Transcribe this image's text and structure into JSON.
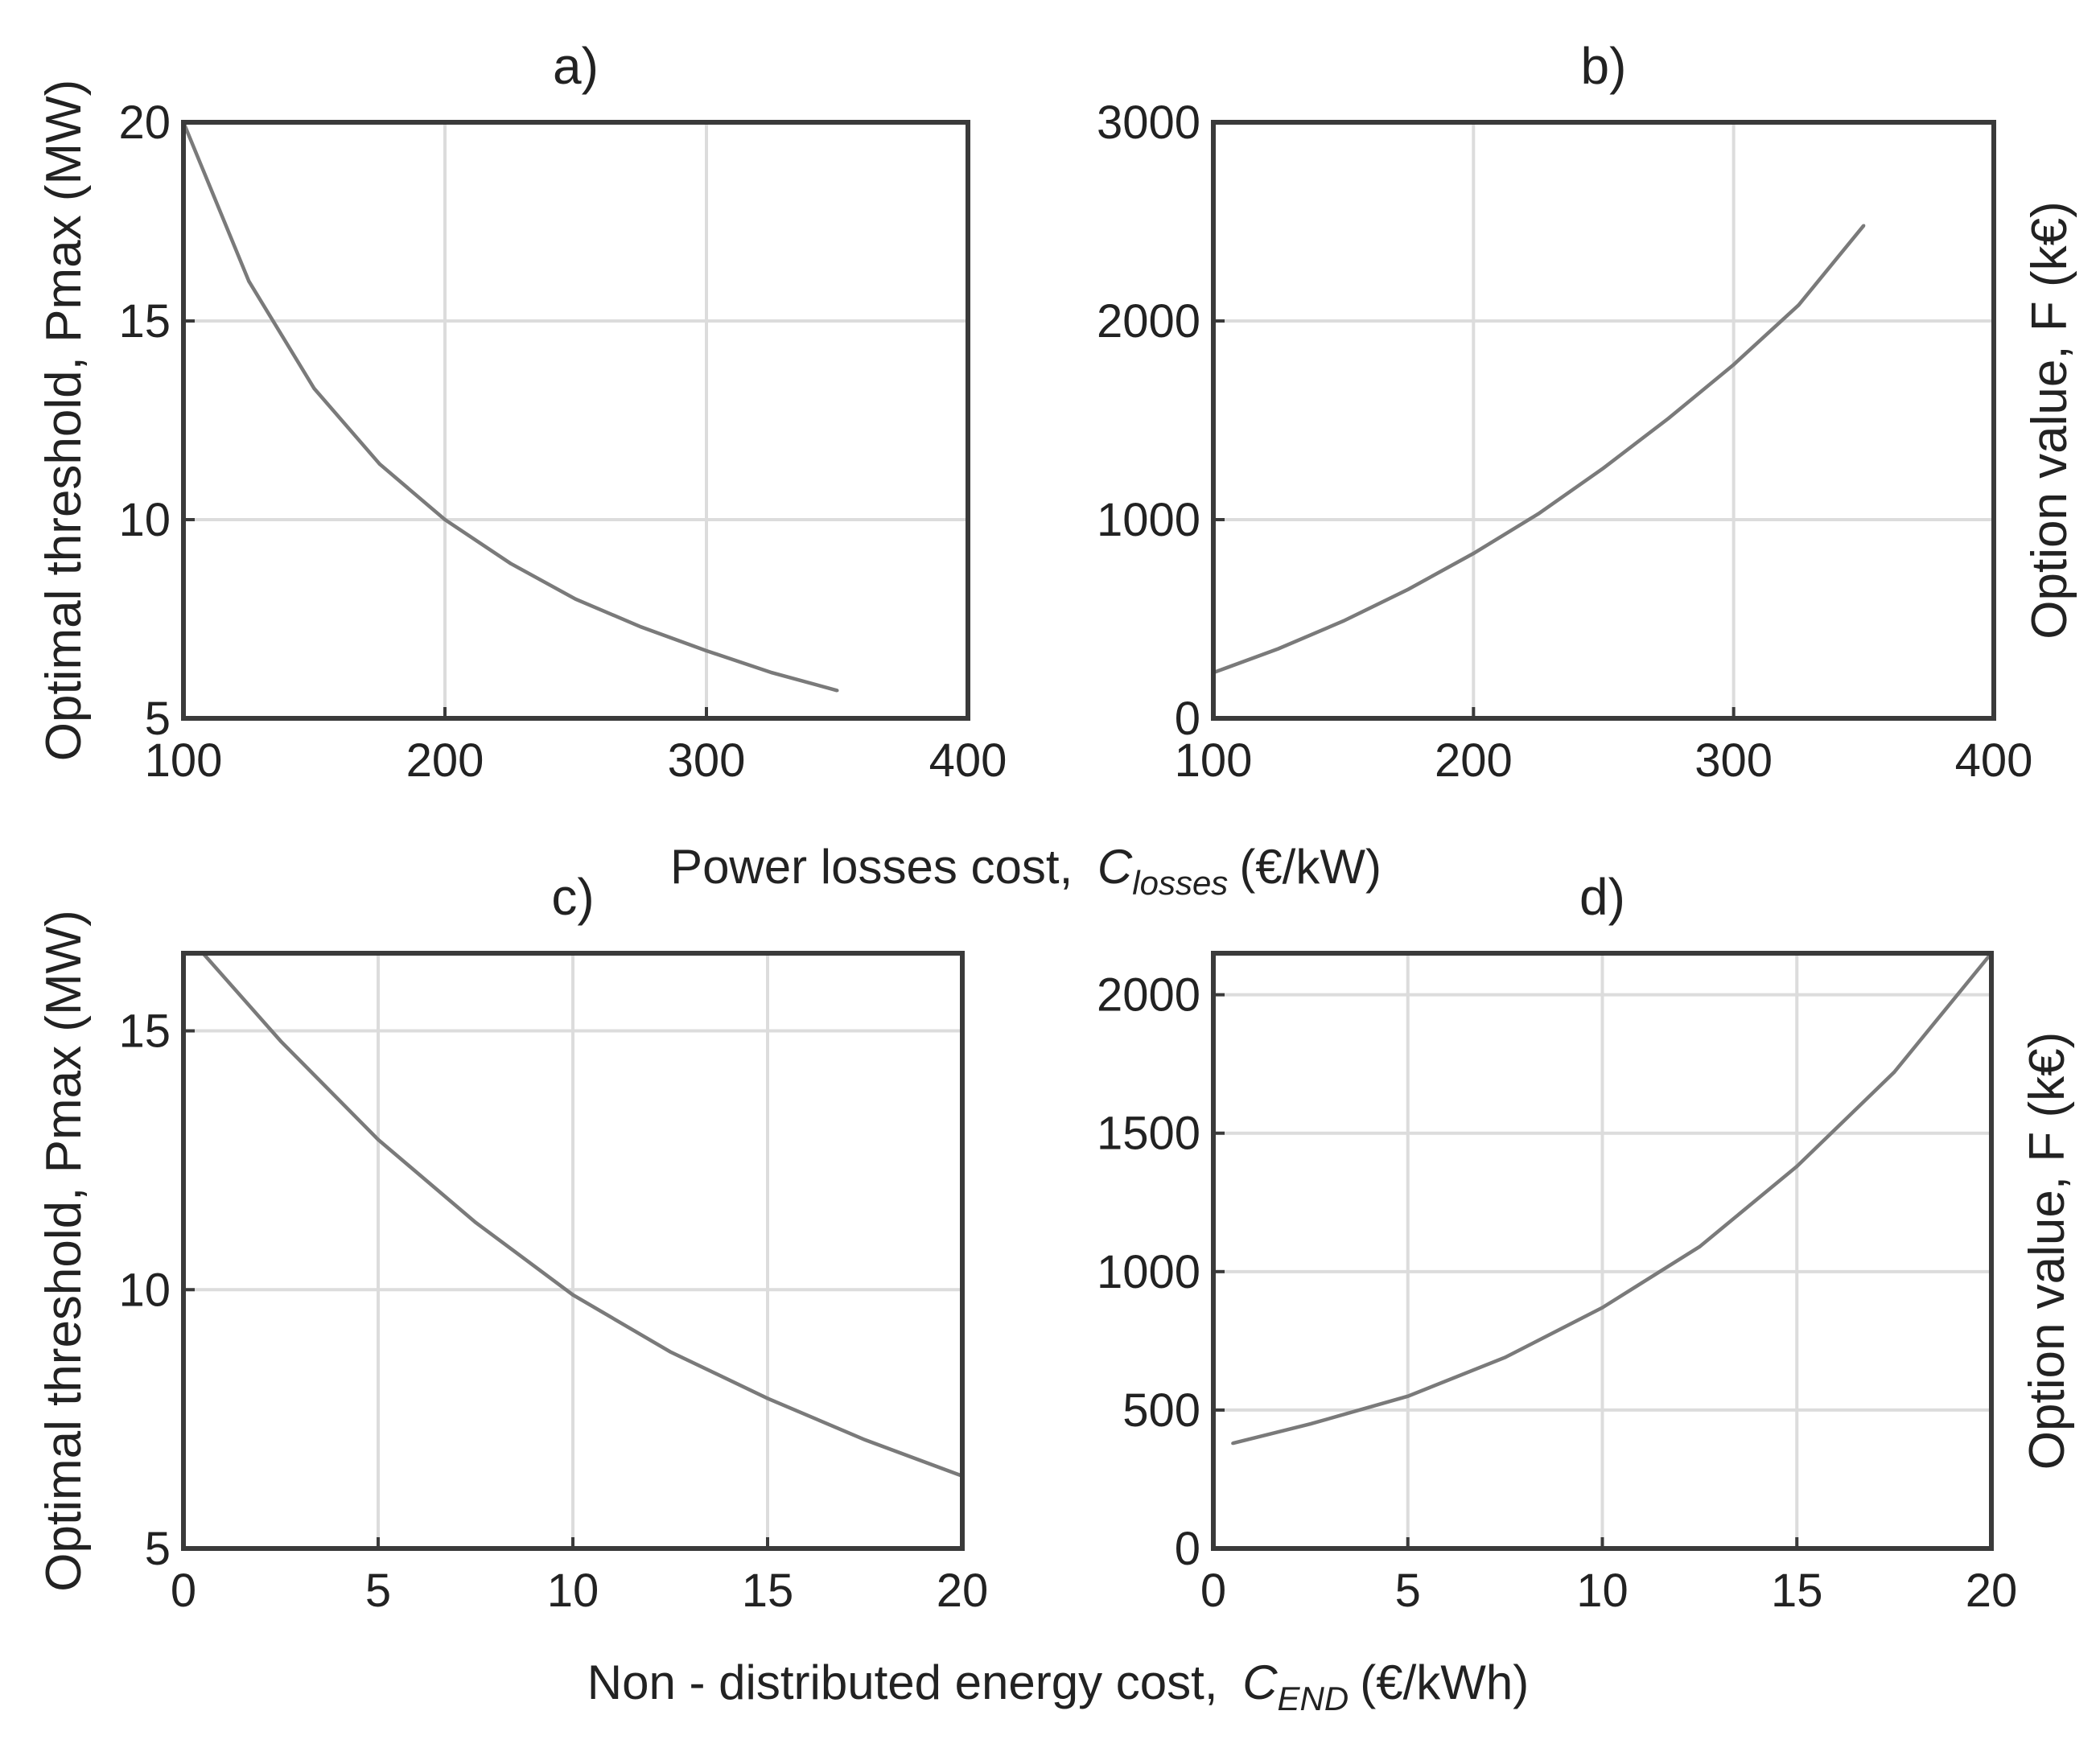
{
  "chart_data": [
    {
      "type": "line",
      "title": "a)",
      "xlabel": "",
      "ylabel": "Optimal threshold, Pmax (MW)",
      "xlim": [
        100,
        400
      ],
      "ylim": [
        5,
        20
      ],
      "xticks": [
        "100",
        "200",
        "300",
        "400"
      ],
      "yticks": [
        "5",
        "10",
        "15",
        "20"
      ],
      "grid": true,
      "ylabel_side": "left",
      "series": [
        {
          "name": "Pmax",
          "x": [
            100,
            125,
            150,
            175,
            200,
            225,
            250,
            275,
            300,
            325,
            350
          ],
          "y": [
            20.0,
            16.0,
            13.3,
            11.4,
            10.0,
            8.9,
            8.0,
            7.3,
            6.7,
            6.15,
            5.7
          ]
        }
      ]
    },
    {
      "type": "line",
      "title": "b)",
      "xlabel": "",
      "ylabel": "Option value, F (k€)",
      "xlim": [
        100,
        400
      ],
      "ylim": [
        0,
        3000
      ],
      "xticks": [
        "100",
        "200",
        "300",
        "400"
      ],
      "yticks": [
        "0",
        "1000",
        "2000",
        "3000"
      ],
      "grid": true,
      "ylabel_side": "right",
      "series": [
        {
          "name": "F",
          "x": [
            100,
            125,
            150,
            175,
            200,
            225,
            250,
            275,
            300,
            325,
            350
          ],
          "y": [
            230,
            350,
            490,
            650,
            830,
            1030,
            1260,
            1510,
            1780,
            2080,
            2480
          ]
        }
      ]
    },
    {
      "type": "line",
      "title": "c)",
      "xlabel": "",
      "ylabel": "Optimal threshold, Pmax (MW)",
      "xlim": [
        0,
        20
      ],
      "ylim": [
        5,
        16.5
      ],
      "xticks": [
        "0",
        "5",
        "10",
        "15",
        "20"
      ],
      "yticks": [
        "5",
        "10",
        "15"
      ],
      "ytick_values": [
        5,
        10,
        15
      ],
      "grid": true,
      "ylabel_side": "left",
      "series": [
        {
          "name": "Pmax",
          "x": [
            0.5,
            2.5,
            5,
            7.5,
            10,
            12.5,
            15,
            17.5,
            20
          ],
          "y": [
            16.5,
            14.8,
            12.9,
            11.3,
            9.9,
            8.8,
            7.9,
            7.1,
            6.4
          ]
        }
      ]
    },
    {
      "type": "line",
      "title": "d)",
      "xlabel": "",
      "ylabel": "Option value, F (k€)",
      "xlim": [
        0,
        20
      ],
      "ylim": [
        0,
        2150
      ],
      "xticks": [
        "0",
        "5",
        "10",
        "15",
        "20"
      ],
      "yticks": [
        "0",
        "500",
        "1000",
        "1500",
        "2000"
      ],
      "ytick_values": [
        0,
        500,
        1000,
        1500,
        2000
      ],
      "grid": true,
      "ylabel_side": "right",
      "series": [
        {
          "name": "F",
          "x": [
            0.5,
            2.5,
            5,
            7.5,
            10,
            12.5,
            15,
            17.5,
            20
          ],
          "y": [
            380,
            450,
            550,
            690,
            870,
            1090,
            1380,
            1720,
            2150
          ]
        }
      ]
    }
  ],
  "shared_xlabels": {
    "top_prefix": "Power losses cost,",
    "top_symbol": "C",
    "top_subscript": "losses",
    "top_unit": "(€/kW)",
    "bottom_prefix": "Non - distributed energy cost,",
    "bottom_symbol": "C",
    "bottom_subscript": "END",
    "bottom_unit": "(€/kWh)"
  }
}
